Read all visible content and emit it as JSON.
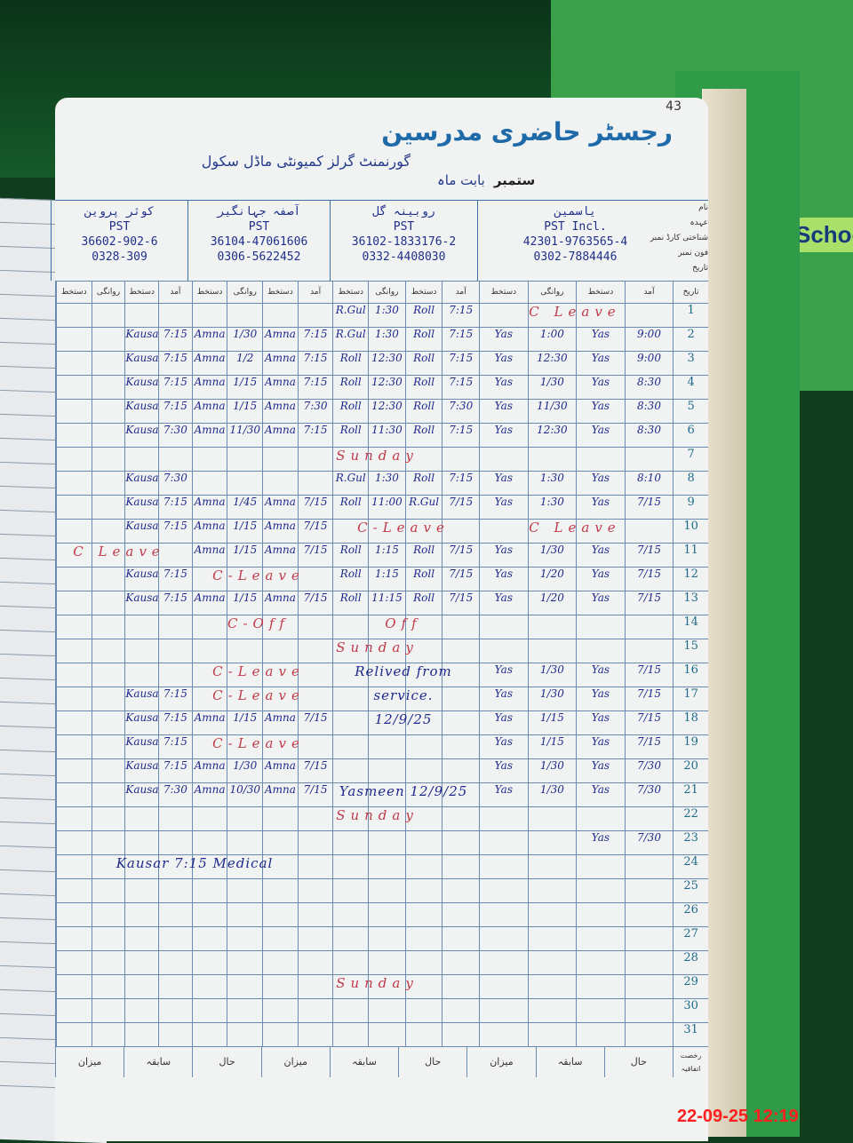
{
  "register": {
    "title": "رجسٹر حاضری مدرسین",
    "page_number": "43",
    "school_name": "گورنمنٹ گرلز کمیونٹی ماڈل سکول",
    "month_label": "بابت ماہ",
    "month_value": "ستمبر",
    "header_labels": [
      "نام",
      "عہدہ",
      "شناختی کارڈ نمبر",
      "فون نمبر",
      "تاریخ"
    ],
    "sub_headers": [
      "آمد",
      "دستخط",
      "روانگی",
      "دستخط"
    ],
    "teachers": [
      {
        "name": "یاسمین",
        "designation": "PST Incl.",
        "cnic": "42301-9763565-4",
        "phone": "0302-7884446"
      },
      {
        "name": "روبینہ گل",
        "designation": "PST",
        "cnic": "36102-1833176-2",
        "phone": "0332-4408030"
      },
      {
        "name": "آصفہ جہانگیر",
        "designation": "PST",
        "cnic": "36104-47061606",
        "phone": "0306-5622452"
      },
      {
        "name": "کوثر پروین",
        "designation": "PST",
        "cnic": "36602-902-6",
        "phone": "0328-309"
      }
    ],
    "rows": [
      {
        "day": "1",
        "spans": [
          {
            "t": 0,
            "text": "C Leave"
          }
        ],
        "cells": [
          null,
          [
            "7:15",
            "Roll",
            "1:30",
            "R.Gul"
          ],
          null,
          null
        ]
      },
      {
        "day": "2",
        "cells": [
          [
            "9:00",
            "Yas",
            "1:00",
            "Yas"
          ],
          [
            "7:15",
            "Roll",
            "1:30",
            "R.Gul"
          ],
          [
            "7:15",
            "Amna",
            "1/30",
            "Amna"
          ],
          [
            "7:15",
            "Kausar",
            "",
            ""
          ]
        ]
      },
      {
        "day": "3",
        "cells": [
          [
            "9:00",
            "Yas",
            "12:30",
            "Yas"
          ],
          [
            "7:15",
            "Roll",
            "12:30",
            "Roll"
          ],
          [
            "7:15",
            "Amna",
            "1/2",
            "Amna"
          ],
          [
            "7:15",
            "Kausar",
            "",
            ""
          ]
        ]
      },
      {
        "day": "4",
        "cells": [
          [
            "8:30",
            "Yas",
            "1/30",
            "Yas"
          ],
          [
            "7:15",
            "Roll",
            "12:30",
            "Roll"
          ],
          [
            "7:15",
            "Amna",
            "1/15",
            "Amna"
          ],
          [
            "7:15",
            "Kausar",
            "",
            ""
          ]
        ]
      },
      {
        "day": "5",
        "cells": [
          [
            "8:30",
            "Yas",
            "11/30",
            "Yas"
          ],
          [
            "7:30",
            "Roll",
            "12:30",
            "Roll"
          ],
          [
            "7:30",
            "Amna",
            "1/15",
            "Amna"
          ],
          [
            "7:15",
            "Kausar",
            "",
            ""
          ]
        ]
      },
      {
        "day": "6",
        "cells": [
          [
            "8:30",
            "Yas",
            "12:30",
            "Yas"
          ],
          [
            "7:15",
            "Roll",
            "11:30",
            "Roll"
          ],
          [
            "7:15",
            "Amna",
            "11/30",
            "Amna"
          ],
          [
            "7:30",
            "Kausar",
            "",
            ""
          ]
        ]
      },
      {
        "day": "7",
        "spans": [
          {
            "t": -1,
            "text": "Sunday"
          }
        ],
        "cells": [
          null,
          null,
          null,
          null
        ]
      },
      {
        "day": "8",
        "cells": [
          [
            "8:10",
            "Yas",
            "1:30",
            "Yas"
          ],
          [
            "7:15",
            "Roll",
            "1:30",
            "R.Gul"
          ],
          null,
          [
            "7:30",
            "Kausar",
            "",
            ""
          ]
        ]
      },
      {
        "day": "9",
        "cells": [
          [
            "7/15",
            "Yas",
            "1:30",
            "Yas"
          ],
          [
            "7/15",
            "R.Gul",
            "11:00",
            "Roll"
          ],
          [
            "7/15",
            "Amna",
            "1/45",
            "Amna"
          ],
          [
            "7:15",
            "Kausar",
            "",
            ""
          ]
        ]
      },
      {
        "day": "10",
        "spans": [
          {
            "t": 0,
            "text": "C Leave"
          },
          {
            "t": 1,
            "text": "C-Leave"
          }
        ],
        "cells": [
          null,
          null,
          [
            "7/15",
            "Amna",
            "1/15",
            "Amna"
          ],
          [
            "7:15",
            "Kausar",
            "",
            ""
          ]
        ]
      },
      {
        "day": "11",
        "spans": [
          {
            "t": 3,
            "text": "C Leave"
          }
        ],
        "cells": [
          [
            "7/15",
            "Yas",
            "1/30",
            "Yas"
          ],
          [
            "7/15",
            "Roll",
            "1:15",
            "Roll"
          ],
          [
            "7/15",
            "Amna",
            "1/15",
            "Amna"
          ],
          null
        ]
      },
      {
        "day": "12",
        "spans": [
          {
            "t": 2,
            "text": "C-Leave"
          }
        ],
        "cells": [
          [
            "7/15",
            "Yas",
            "1/20",
            "Yas"
          ],
          [
            "7/15",
            "Roll",
            "1:15",
            "Roll"
          ],
          null,
          [
            "7:15",
            "Kausar",
            "",
            ""
          ]
        ]
      },
      {
        "day": "13",
        "cells": [
          [
            "7/15",
            "Yas",
            "1/20",
            "Yas"
          ],
          [
            "7/15",
            "Roll",
            "11:15",
            "Roll"
          ],
          [
            "7/15",
            "Amna",
            "1/15",
            "Amna"
          ],
          [
            "7:15",
            "Kausar",
            "",
            ""
          ]
        ]
      },
      {
        "day": "14",
        "spans": [
          {
            "t": 1,
            "text": "Off"
          },
          {
            "t": 2,
            "text": "C-Off"
          }
        ],
        "cells": [
          null,
          null,
          null,
          null
        ]
      },
      {
        "day": "15",
        "spans": [
          {
            "t": -1,
            "text": "Sunday"
          }
        ],
        "cells": [
          null,
          null,
          null,
          null
        ]
      },
      {
        "day": "16",
        "spans": [
          {
            "t": 1,
            "text": "Relived from",
            "blue": true
          },
          {
            "t": 2,
            "text": "C-Leave"
          }
        ],
        "cells": [
          [
            "7/15",
            "Yas",
            "1/30",
            "Yas"
          ],
          null,
          null,
          null
        ]
      },
      {
        "day": "17",
        "spans": [
          {
            "t": 1,
            "text": "service.",
            "blue": true
          },
          {
            "t": 2,
            "text": "C-Leave"
          }
        ],
        "cells": [
          [
            "7/15",
            "Yas",
            "1/30",
            "Yas"
          ],
          null,
          null,
          [
            "7:15",
            "Kausar",
            "",
            ""
          ]
        ]
      },
      {
        "day": "18",
        "spans": [
          {
            "t": 1,
            "text": "12/9/25",
            "blue": true
          }
        ],
        "cells": [
          [
            "7/15",
            "Yas",
            "1/15",
            "Yas"
          ],
          null,
          [
            "7/15",
            "Amna",
            "1/15",
            "Amna"
          ],
          [
            "7:15",
            "Kausar",
            "",
            ""
          ]
        ]
      },
      {
        "day": "19",
        "spans": [
          {
            "t": 2,
            "text": "C-Leave"
          }
        ],
        "cells": [
          [
            "7/15",
            "Yas",
            "1/15",
            "Yas"
          ],
          null,
          null,
          [
            "7:15",
            "Kausar",
            "",
            ""
          ]
        ]
      },
      {
        "day": "20",
        "cells": [
          [
            "7/30",
            "Yas",
            "1/30",
            "Yas"
          ],
          null,
          [
            "7/15",
            "Amna",
            "1/30",
            "Amna"
          ],
          [
            "7:15",
            "Kausar",
            "",
            ""
          ]
        ]
      },
      {
        "day": "21",
        "spans": [
          {
            "t": 1,
            "text": "Yasmeen 12/9/25",
            "blue": true
          }
        ],
        "cells": [
          [
            "7/30",
            "Yas",
            "1/30",
            "Yas"
          ],
          null,
          [
            "7/15",
            "Amna",
            "10/30",
            "Amna"
          ],
          [
            "7:30",
            "Kausar",
            "",
            ""
          ]
        ]
      },
      {
        "day": "22",
        "spans": [
          {
            "t": -1,
            "text": "Sunday"
          }
        ],
        "cells": [
          null,
          null,
          null,
          null
        ]
      },
      {
        "day": "23",
        "cells": [
          [
            "7/30",
            "Yas",
            "",
            ""
          ],
          null,
          null,
          null
        ]
      },
      {
        "day": "24",
        "spans": [
          {
            "t": 3,
            "text": "Kausar 7:15 Medical",
            "blue": true
          }
        ],
        "cells": [
          null,
          null,
          null,
          null
        ]
      },
      {
        "day": "25",
        "cells": [
          null,
          null,
          null,
          null
        ]
      },
      {
        "day": "26",
        "cells": [
          null,
          null,
          null,
          null
        ]
      },
      {
        "day": "27",
        "cells": [
          null,
          null,
          null,
          null
        ]
      },
      {
        "day": "28",
        "cells": [
          null,
          null,
          null,
          null
        ]
      },
      {
        "day": "29",
        "spans": [
          {
            "t": -1,
            "text": "Sunday"
          }
        ],
        "cells": [
          null,
          null,
          null,
          null
        ]
      },
      {
        "day": "30",
        "cells": [
          null,
          null,
          null,
          null
        ]
      },
      {
        "day": "31",
        "cells": [
          null,
          null,
          null,
          null
        ]
      }
    ],
    "footer_labels": {
      "casual_leave": "رخصت اتفاقیہ",
      "current": "حال",
      "previous": "سابقہ",
      "total": "میزان"
    }
  },
  "background": {
    "book_label": "School"
  },
  "timestamp": "22-09-25  12:19",
  "colors": {
    "ink_blue": "#1e2a8c",
    "ink_red": "#c03a4a",
    "grid": "#3a6fa8",
    "stamp": "#ff2020"
  }
}
